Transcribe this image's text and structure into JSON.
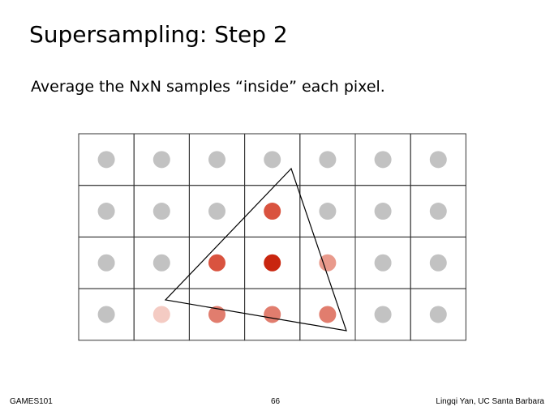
{
  "slide": {
    "title": "Supersampling: Step 2",
    "subtitle": "Average the NxN samples “inside” each pixel."
  },
  "grid": {
    "rows": 4,
    "cols": 7,
    "cells": [
      [
        "#c2c2c2",
        "#c2c2c2",
        "#c2c2c2",
        "#c2c2c2",
        "#c2c2c2",
        "#c2c2c2",
        "#c2c2c2"
      ],
      [
        "#c2c2c2",
        "#c2c2c2",
        "#c2c2c2",
        "#d9533f",
        "#c2c2c2",
        "#c2c2c2",
        "#c2c2c2"
      ],
      [
        "#c2c2c2",
        "#c2c2c2",
        "#d9533f",
        "#c9260f",
        "#e99a8c",
        "#c2c2c2",
        "#c2c2c2"
      ],
      [
        "#c2c2c2",
        "#f4cbc3",
        "#e17d6e",
        "#e17d6e",
        "#e17d6e",
        "#c2c2c2",
        "#c2c2c2"
      ]
    ],
    "line_color": "#333333"
  },
  "footer": {
    "left": "GAMES101",
    "center": "66",
    "right": "Lingqi Yan, UC Santa Barbara"
  }
}
